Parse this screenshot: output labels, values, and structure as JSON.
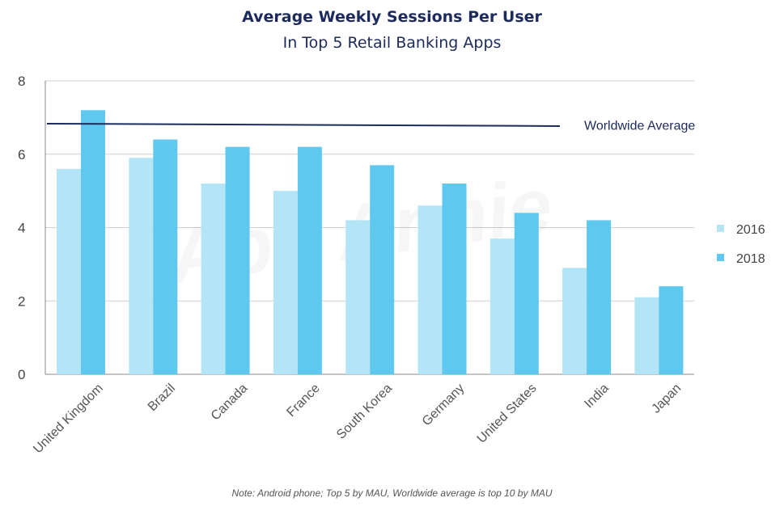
{
  "chart_data": {
    "type": "bar",
    "title": "Average Weekly Sessions Per User",
    "subtitle": "In Top 5 Retail Banking Apps",
    "note": "Note: Android phone; Top 5 by MAU, Worldwide average is top 10 by MAU",
    "categories": [
      "United Kingdom",
      "Brazil",
      "Canada",
      "France",
      "South Korea",
      "Germany",
      "United States",
      "India",
      "Japan"
    ],
    "series": [
      {
        "name": "2016",
        "color": "#b3e5f7",
        "values": [
          5.6,
          5.9,
          5.2,
          5.0,
          4.2,
          4.6,
          3.7,
          2.9,
          2.1
        ]
      },
      {
        "name": "2018",
        "color": "#5ec8ef",
        "values": [
          7.2,
          6.4,
          6.2,
          6.2,
          5.7,
          5.2,
          4.4,
          4.2,
          2.4
        ]
      }
    ],
    "reference_line": {
      "label": "Worldwide Average",
      "value": 6.8,
      "color": "#1c2a5c"
    },
    "ylim": [
      0,
      8
    ],
    "yticks": [
      0,
      2,
      4,
      6,
      8
    ],
    "xlabel": "",
    "ylabel": "",
    "grid": true,
    "legend_position": "right",
    "watermark": "App Annie"
  }
}
